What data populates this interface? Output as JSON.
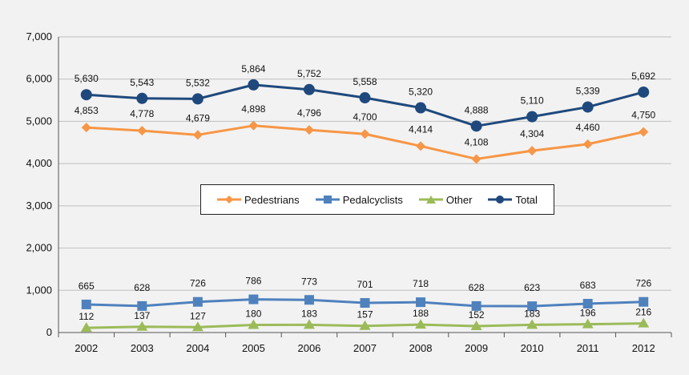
{
  "chart_data": {
    "type": "line",
    "categories": [
      "2002",
      "2003",
      "2004",
      "2005",
      "2006",
      "2007",
      "2008",
      "2009",
      "2010",
      "2011",
      "2012"
    ],
    "ylim": [
      0,
      7000
    ],
    "yticks": [
      0,
      1000,
      2000,
      3000,
      4000,
      5000,
      6000,
      7000
    ],
    "ytick_labels": [
      "0",
      "1,000",
      "2,000",
      "3,000",
      "4,000",
      "5,000",
      "6,000",
      "7,000"
    ],
    "grid": true,
    "legend_position": "center",
    "series": [
      {
        "name": "Pedestrians",
        "color": "#f79646",
        "marker": "diamond",
        "values": [
          4853,
          4778,
          4679,
          4898,
          4796,
          4700,
          4414,
          4108,
          4304,
          4460,
          4750
        ],
        "labels": [
          "4,853",
          "4,778",
          "4,679",
          "4,898",
          "4,796",
          "4,700",
          "4,414",
          "4,108",
          "4,304",
          "4,460",
          "4,750"
        ]
      },
      {
        "name": "Pedalcyclists",
        "color": "#4f81bd",
        "marker": "square",
        "values": [
          665,
          628,
          726,
          786,
          773,
          701,
          718,
          628,
          623,
          683,
          726
        ],
        "labels": [
          "665",
          "628",
          "726",
          "786",
          "773",
          "701",
          "718",
          "628",
          "623",
          "683",
          "726"
        ]
      },
      {
        "name": "Other",
        "color": "#9bbb59",
        "marker": "triangle",
        "values": [
          112,
          137,
          127,
          180,
          183,
          157,
          188,
          152,
          183,
          196,
          216
        ],
        "labels": [
          "112",
          "137",
          "127",
          "180",
          "183",
          "157",
          "188",
          "152",
          "183",
          "196",
          "216"
        ]
      },
      {
        "name": "Total",
        "color": "#1f497d",
        "marker": "circle",
        "values": [
          5630,
          5543,
          5532,
          5864,
          5752,
          5558,
          5320,
          4888,
          5110,
          5339,
          5692
        ],
        "labels": [
          "5,630",
          "5,543",
          "5,532",
          "5,864",
          "5,752",
          "5,558",
          "5,320",
          "4,888",
          "5,110",
          "5,339",
          "5,692"
        ]
      }
    ]
  }
}
